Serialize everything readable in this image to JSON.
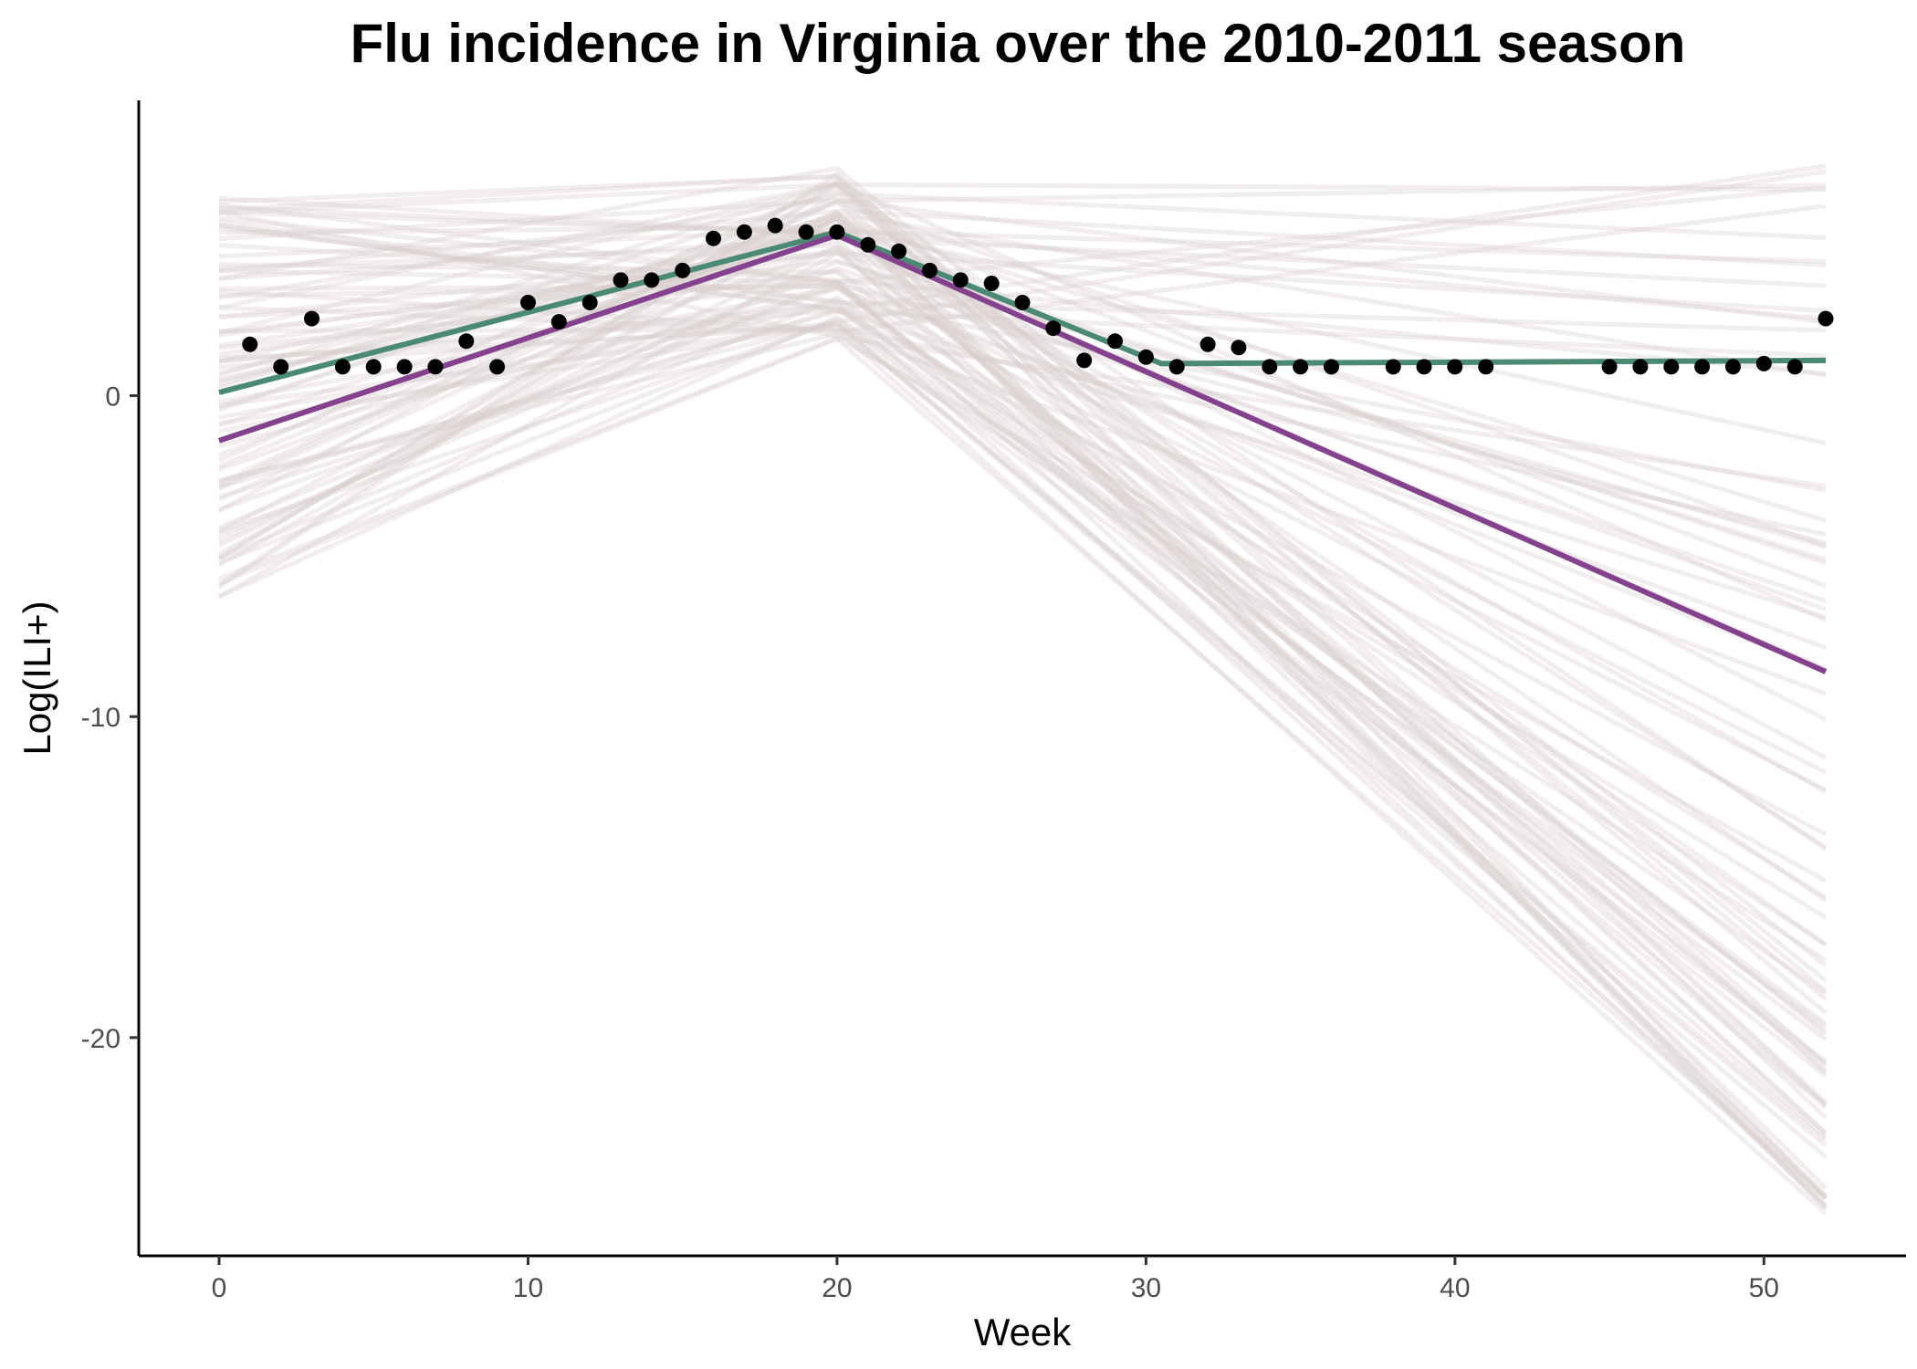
{
  "chart_data": {
    "type": "line",
    "title": "Flu incidence in Virginia over the 2010-2011 season",
    "xlabel": "Week",
    "ylabel": "Log(ILI+)",
    "xlim": [
      -2.6,
      54.6
    ],
    "ylim": [
      -26.8,
      9.2
    ],
    "xticks": [
      0,
      10,
      20,
      30,
      40,
      50
    ],
    "xtick_labels": [
      "0",
      "10",
      "20",
      "30",
      "40",
      "50"
    ],
    "yticks": [
      0,
      -10,
      -20
    ],
    "ytick_labels": [
      "0",
      "-10",
      "-20"
    ],
    "grid": false,
    "legend": "none",
    "colors": {
      "green_line": "#4a8a74",
      "purple_line": "#84418e",
      "samples": "#d9cfcf",
      "points": "#000000"
    },
    "series": [
      {
        "type": "line",
        "x": [
          0,
          20,
          30.5,
          52
        ],
        "y": [
          0.1,
          5.1,
          1.0,
          1.1
        ]
      },
      {
        "type": "line",
        "x": [
          0,
          20,
          52
        ],
        "y": [
          -1.4,
          5.0,
          -8.6
        ]
      },
      {
        "type": "scatter",
        "x": [
          1,
          2,
          3,
          4,
          5,
          6,
          7,
          8,
          9,
          10,
          11,
          12,
          13,
          14,
          15,
          16,
          17,
          18,
          19,
          20,
          21,
          22,
          23,
          24,
          25,
          26,
          27,
          28,
          29,
          30,
          31,
          32,
          33,
          34,
          35,
          36,
          38,
          39,
          40,
          41,
          45,
          46,
          47,
          48,
          49,
          50,
          51,
          52
        ],
        "y": [
          1.6,
          0.9,
          2.4,
          0.9,
          0.9,
          0.9,
          0.9,
          1.7,
          0.9,
          2.9,
          2.3,
          2.9,
          3.6,
          3.6,
          3.9,
          4.9,
          5.1,
          5.3,
          5.1,
          5.1,
          4.7,
          4.5,
          3.9,
          3.6,
          3.5,
          2.9,
          2.1,
          1.1,
          1.7,
          1.2,
          0.9,
          1.6,
          1.5,
          0.9,
          0.9,
          0.9,
          0.9,
          0.9,
          0.9,
          0.9,
          0.9,
          0.9,
          0.9,
          0.9,
          0.9,
          1.0,
          0.9,
          2.4
        ]
      }
    ],
    "sample_trajectories": {
      "knots_x": [
        0,
        20,
        52
      ],
      "count": 90,
      "start_range": [
        -6.3,
        6.7
      ],
      "peak_range": [
        1.7,
        7.2
      ],
      "end_range": [
        -25.5,
        7.3
      ]
    }
  }
}
